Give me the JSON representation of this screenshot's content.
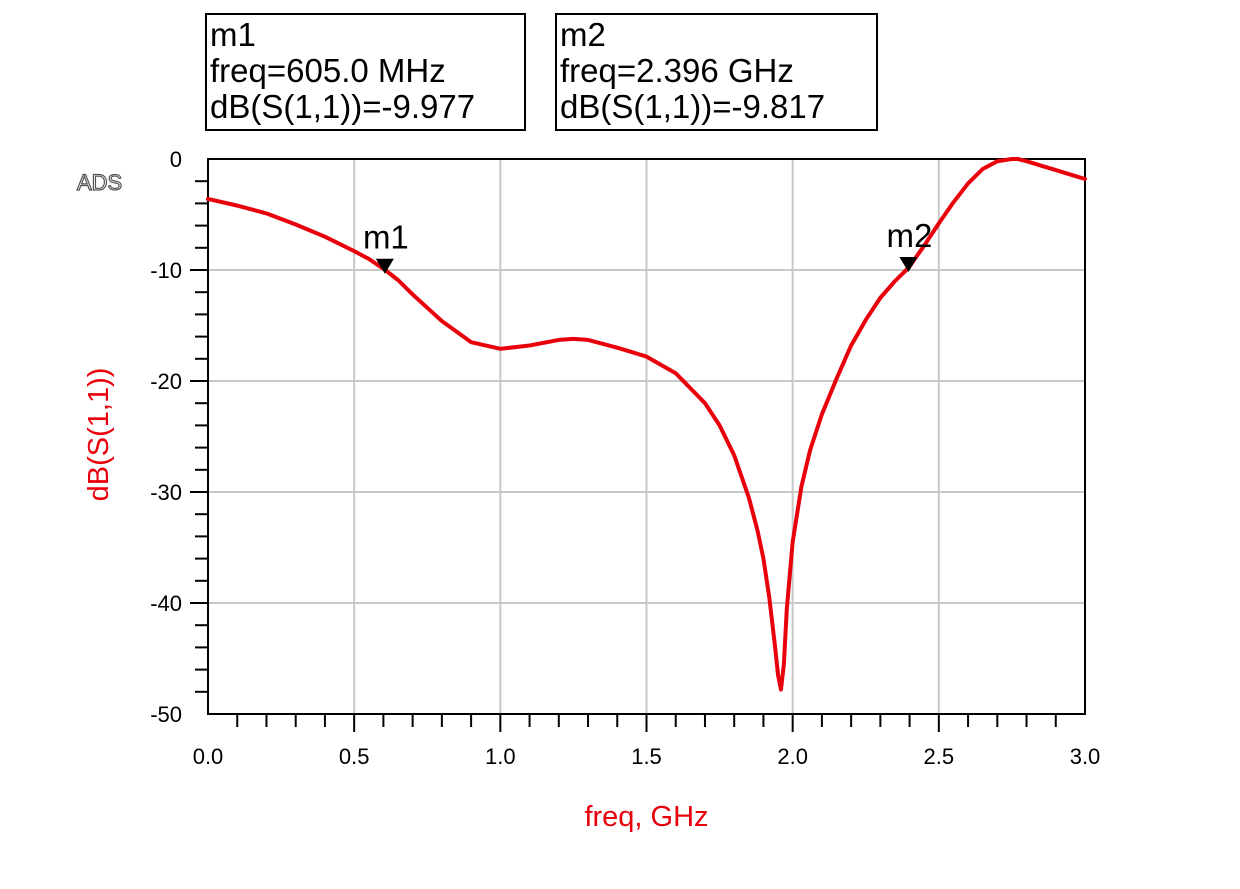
{
  "logo": "ADS",
  "marker_readouts": [
    {
      "name": "m1",
      "freq_line": "freq=605.0 MHz",
      "value_line": "dB(S(1,1))=-9.977"
    },
    {
      "name": "m2",
      "freq_line": "freq=2.396 GHz",
      "value_line": "dB(S(1,1))=-9.817"
    }
  ],
  "chart_data": {
    "type": "line",
    "title": "",
    "xlabel": "freq, GHz",
    "ylabel": "dB(S(1,1))",
    "xlim": [
      0.0,
      3.0
    ],
    "ylim": [
      -50,
      0
    ],
    "x_ticks": [
      "0.0",
      "0.5",
      "1.0",
      "1.5",
      "2.0",
      "2.5",
      "3.0"
    ],
    "y_ticks": [
      "0",
      "-10",
      "-20",
      "-30",
      "-40",
      "-50"
    ],
    "grid": true,
    "colors": {
      "series": "#e8000b",
      "axis_label": "#e8000b",
      "grid": "#c8c8c8",
      "frame": "#000000"
    },
    "series": [
      {
        "x": [
          0.0,
          0.1,
          0.2,
          0.3,
          0.4,
          0.5,
          0.55,
          0.605,
          0.65,
          0.7,
          0.8,
          0.9,
          1.0,
          1.1,
          1.2,
          1.25,
          1.3,
          1.4,
          1.5,
          1.6,
          1.7,
          1.75,
          1.8,
          1.85,
          1.88,
          1.9,
          1.92,
          1.94,
          1.95,
          1.96,
          1.97,
          1.98,
          2.0,
          2.03,
          2.06,
          2.1,
          2.15,
          2.2,
          2.25,
          2.3,
          2.35,
          2.396,
          2.45,
          2.5,
          2.55,
          2.6,
          2.65,
          2.7,
          2.75,
          2.77,
          2.8,
          2.85,
          2.9,
          2.95,
          3.0
        ],
        "y": [
          -3.6,
          -4.2,
          -4.9,
          -5.9,
          -7.0,
          -8.3,
          -9.0,
          -9.977,
          -10.9,
          -12.2,
          -14.6,
          -16.5,
          -17.1,
          -16.8,
          -16.3,
          -16.2,
          -16.3,
          -17.0,
          -17.8,
          -19.3,
          -22.0,
          -24.0,
          -26.7,
          -30.5,
          -33.5,
          -36.0,
          -39.5,
          -44.0,
          -46.5,
          -47.8,
          -45.5,
          -40.5,
          -34.5,
          -29.5,
          -26.2,
          -23.0,
          -19.8,
          -16.8,
          -14.5,
          -12.5,
          -11.0,
          -9.817,
          -7.8,
          -5.8,
          -3.9,
          -2.2,
          -0.9,
          -0.2,
          0.0,
          0.0,
          -0.2,
          -0.6,
          -1.0,
          -1.4,
          -1.8
        ]
      }
    ],
    "markers": [
      {
        "label": "m1",
        "x": 0.605,
        "y": -9.977
      },
      {
        "label": "m2",
        "x": 2.396,
        "y": -9.817
      }
    ]
  }
}
